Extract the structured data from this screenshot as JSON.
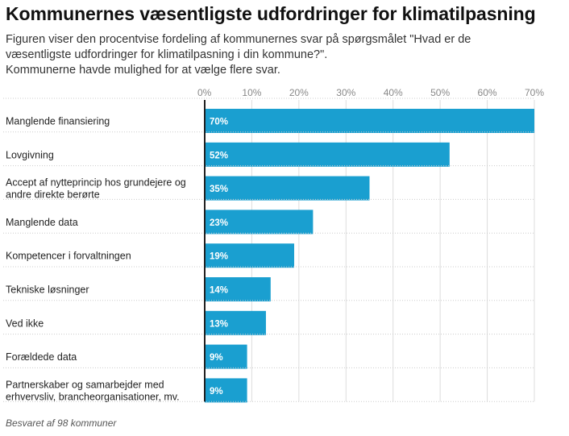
{
  "title": "Kommunernes væsentligste udfordringer for klimatilpasning",
  "subtitle_lines": [
    "Figuren viser den procentvise fordeling af kommunernes svar på spørgsmålet \"Hvad er de",
    "væsentligste udfordringer for klimatilpasning i din kommune?\".",
    "Kommunerne havde mulighed for at vælge flere svar."
  ],
  "footnote": "Besvaret af 98 kommuner",
  "colors": {
    "bar": "#1a9fd0",
    "grid": "#dddddd",
    "axis": "#222222"
  },
  "chart_data": {
    "type": "bar",
    "orientation": "horizontal",
    "categories": [
      [
        "Manglende finansiering"
      ],
      [
        "Lovgivning"
      ],
      [
        "Accept af nytteprincip hos grundejere og",
        "andre direkte berørte"
      ],
      [
        "Manglende data"
      ],
      [
        "Kompetencer i forvaltningen"
      ],
      [
        "Tekniske løsninger"
      ],
      [
        "Ved ikke"
      ],
      [
        "Forældede data"
      ],
      [
        "Partnerskaber og samarbejder med",
        "erhvervsliv, brancheorganisationer, mv."
      ]
    ],
    "values": [
      70,
      52,
      35,
      23,
      19,
      14,
      13,
      9,
      9
    ],
    "value_labels": [
      "70%",
      "52%",
      "35%",
      "23%",
      "19%",
      "14%",
      "13%",
      "9%",
      "9%"
    ],
    "xticks": [
      0,
      10,
      20,
      30,
      40,
      50,
      60,
      70
    ],
    "xtick_labels": [
      "0%",
      "10%",
      "20%",
      "30%",
      "40%",
      "50%",
      "60%",
      "70%"
    ],
    "xlim": [
      0,
      70
    ],
    "grid": true
  }
}
